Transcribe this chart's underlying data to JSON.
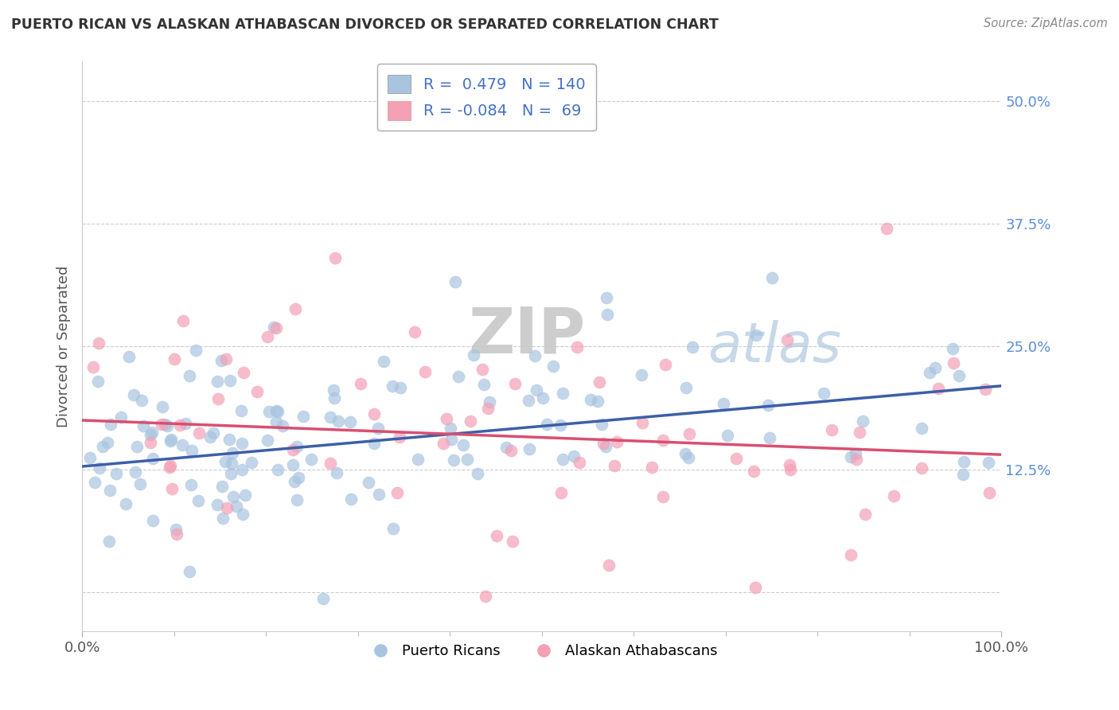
{
  "title": "PUERTO RICAN VS ALASKAN ATHABASCAN DIVORCED OR SEPARATED CORRELATION CHART",
  "source": "Source: ZipAtlas.com",
  "ylabel": "Divorced or Separated",
  "xlim": [
    0.0,
    1.0
  ],
  "ylim": [
    -0.04,
    0.54
  ],
  "yticks": [
    0.0,
    0.125,
    0.25,
    0.375,
    0.5
  ],
  "ytick_labels": [
    "",
    "12.5%",
    "25.0%",
    "37.5%",
    "50.0%"
  ],
  "xtick_labels": [
    "0.0%",
    "100.0%"
  ],
  "blue_R": 0.479,
  "blue_N": 140,
  "pink_R": -0.084,
  "pink_N": 69,
  "blue_color": "#a8c4e0",
  "pink_color": "#f4a0b5",
  "blue_line_color": "#3d5fa8",
  "pink_line_color": "#d94f70",
  "legend_label_blue": "Puerto Ricans",
  "legend_label_pink": "Alaskan Athabascans",
  "watermark_zip": "ZIP",
  "watermark_atlas": "atlas",
  "background_color": "#ffffff",
  "grid_color": "#cccccc",
  "blue_intercept": 0.128,
  "blue_slope": 0.082,
  "pink_intercept": 0.175,
  "pink_slope": -0.035,
  "seed": 17
}
